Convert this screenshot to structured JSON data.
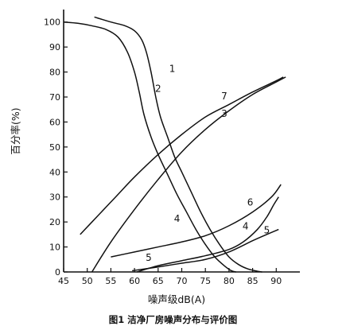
{
  "caption": "图1 洁净厂房噪声分布与评价图",
  "chart_data": {
    "type": "line",
    "title": "",
    "xlabel": "噪声级dB(A)",
    "ylabel": "百分率(%)",
    "xlim": [
      45,
      95
    ],
    "ylim": [
      0,
      105
    ],
    "xticks": [
      45,
      50,
      55,
      60,
      65,
      70,
      75,
      80,
      85,
      90
    ],
    "yticks": [
      0,
      10,
      20,
      30,
      40,
      50,
      60,
      70,
      80,
      90,
      100
    ],
    "grid": false,
    "legend": "none",
    "series": [
      {
        "name": "1",
        "points": [
          [
            51.5,
            102
          ],
          [
            55,
            100
          ],
          [
            58,
            98.5
          ],
          [
            60,
            96.5
          ],
          [
            61.5,
            93
          ],
          [
            62.5,
            88
          ],
          [
            63.5,
            80
          ],
          [
            64.5,
            70
          ],
          [
            65.5,
            62
          ],
          [
            67,
            54
          ],
          [
            68.5,
            46
          ],
          [
            70,
            40
          ],
          [
            72,
            32
          ],
          [
            74,
            24
          ],
          [
            76,
            17
          ],
          [
            78,
            11
          ],
          [
            80,
            6
          ],
          [
            82,
            3
          ],
          [
            84,
            1.2
          ],
          [
            86,
            0.3
          ],
          [
            87,
            0
          ]
        ]
      },
      {
        "name": "2",
        "points": [
          [
            45,
            100
          ],
          [
            48,
            99.5
          ],
          [
            51,
            98.5
          ],
          [
            54,
            97
          ],
          [
            56.5,
            94
          ],
          [
            58.5,
            88
          ],
          [
            60,
            80
          ],
          [
            61,
            72
          ],
          [
            62,
            63
          ],
          [
            63.5,
            54
          ],
          [
            65,
            47
          ],
          [
            67,
            39
          ],
          [
            69,
            31
          ],
          [
            71,
            24
          ],
          [
            73,
            17
          ],
          [
            75,
            11
          ],
          [
            77,
            6
          ],
          [
            79,
            2.5
          ],
          [
            80.5,
            0.5
          ],
          [
            81.5,
            0
          ]
        ]
      },
      {
        "name": "3",
        "points": [
          [
            51,
            0
          ],
          [
            55,
            12
          ],
          [
            60,
            25
          ],
          [
            65,
            37
          ],
          [
            70,
            48
          ],
          [
            75,
            57
          ],
          [
            80,
            64.5
          ],
          [
            85,
            71
          ],
          [
            90,
            76
          ],
          [
            92,
            78
          ]
        ]
      },
      {
        "name": "4",
        "points": [
          [
            60.5,
            0
          ],
          [
            65,
            2.5
          ],
          [
            70,
            4.5
          ],
          [
            75,
            6.5
          ],
          [
            80,
            9
          ],
          [
            83,
            12
          ],
          [
            86,
            17
          ],
          [
            88,
            22
          ],
          [
            89.5,
            27
          ],
          [
            90.5,
            30
          ]
        ]
      },
      {
        "name": "5",
        "points": [
          [
            59.5,
            0.5
          ],
          [
            65,
            2
          ],
          [
            70,
            3.5
          ],
          [
            75,
            5
          ],
          [
            80,
            8
          ],
          [
            85,
            12.5
          ],
          [
            88,
            15
          ],
          [
            90.5,
            17
          ]
        ]
      },
      {
        "name": "6",
        "points": [
          [
            55,
            6
          ],
          [
            60,
            8
          ],
          [
            65,
            10
          ],
          [
            70,
            12
          ],
          [
            75,
            14.5
          ],
          [
            80,
            18.5
          ],
          [
            85,
            24
          ],
          [
            89,
            30
          ],
          [
            91,
            35
          ]
        ]
      },
      {
        "name": "7",
        "points": [
          [
            48.5,
            15
          ],
          [
            52,
            22
          ],
          [
            56,
            30
          ],
          [
            60,
            38
          ],
          [
            65,
            47
          ],
          [
            70,
            55
          ],
          [
            75,
            62
          ],
          [
            80,
            67
          ],
          [
            85,
            72
          ],
          [
            90,
            76.5
          ],
          [
            91.5,
            78
          ]
        ]
      }
    ],
    "curve_labels": [
      {
        "text": "1",
        "x": 68,
        "y": 80
      },
      {
        "text": "2",
        "x": 65,
        "y": 72
      },
      {
        "text": "7",
        "x": 79,
        "y": 69
      },
      {
        "text": "3",
        "x": 79,
        "y": 62
      },
      {
        "text": "6",
        "x": 84.5,
        "y": 26.5
      },
      {
        "text": "4",
        "x": 69,
        "y": 20
      },
      {
        "text": "4",
        "x": 83.5,
        "y": 17
      },
      {
        "text": "5",
        "x": 88,
        "y": 15.5
      },
      {
        "text": "5",
        "x": 63,
        "y": 4.5
      }
    ]
  }
}
